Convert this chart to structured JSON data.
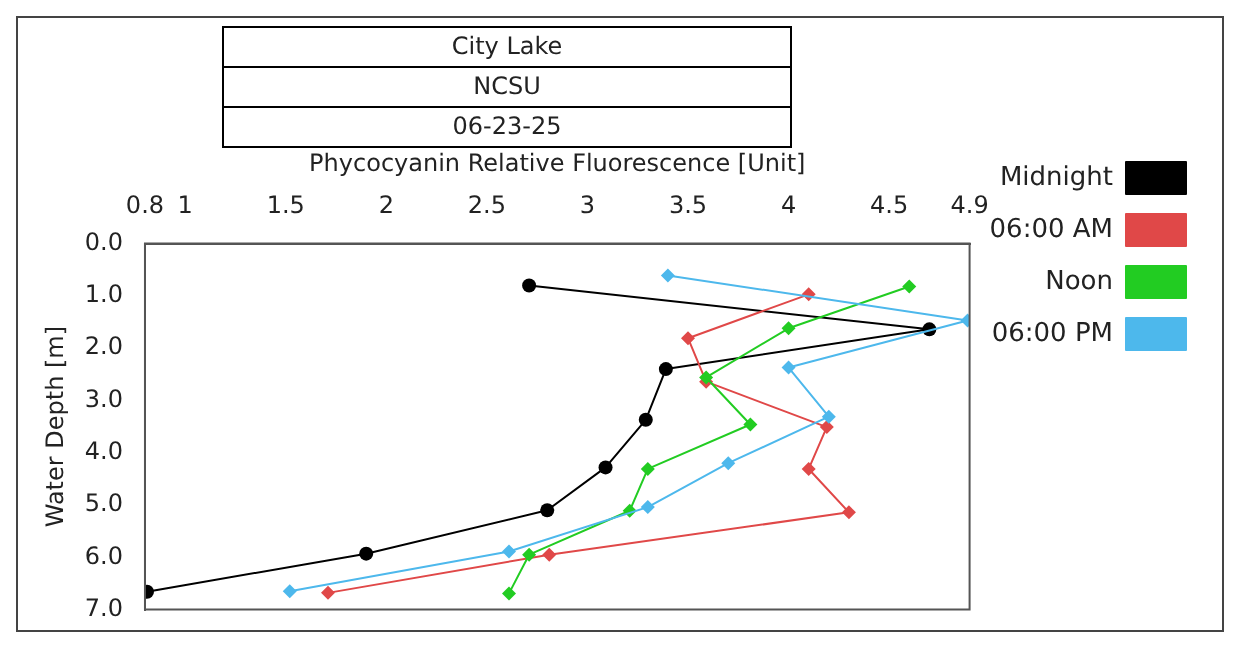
{
  "chart_data": {
    "type": "line",
    "title": "City Lake",
    "subtitle": "NCSU",
    "annotations": [
      "06-23-25"
    ],
    "xlabel": "Phycocyanin Relative Fluorescence [Unit]",
    "ylabel": "Water Depth [m]",
    "xlim": [
      0.8,
      4.9
    ],
    "xticks": [
      0.8,
      1,
      1.5,
      2,
      2.5,
      3,
      3.5,
      4,
      4.5,
      4.9
    ],
    "ylim": [
      7,
      0
    ],
    "yticks": [
      {
        "value": 0,
        "label": "0.0"
      },
      {
        "value": 1,
        "label": "1.0"
      },
      {
        "value": 2,
        "label": "2.0"
      },
      {
        "value": 3,
        "label": "3.0"
      },
      {
        "value": 4,
        "label": "4.0"
      },
      {
        "value": 5,
        "label": "5.0"
      },
      {
        "value": 6,
        "label": "6.0"
      },
      {
        "value": 7,
        "label": "7.0"
      }
    ],
    "grid": false,
    "legend": "top right",
    "line_style": "solid",
    "series": [
      {
        "name": "Midnight",
        "color": "#000000",
        "marker": "circle",
        "x": [
          2.71,
          4.7,
          3.39,
          3.29,
          3.09,
          2.8,
          1.9,
          0.81
        ],
        "values": [
          0.8,
          1.64,
          2.4,
          3.37,
          4.28,
          5.1,
          5.93,
          6.66
        ]
      },
      {
        "name": "06:00 AM",
        "color": "#e04848",
        "marker": "diamond",
        "x": [
          4.1,
          3.5,
          3.59,
          4.19,
          4.1,
          4.3,
          2.81,
          1.71
        ],
        "values": [
          0.97,
          1.81,
          2.64,
          3.51,
          4.31,
          5.14,
          5.95,
          6.68
        ]
      },
      {
        "name": "Noon",
        "color": "#22cc22",
        "marker": "diamond",
        "x": [
          4.6,
          4.0,
          3.59,
          3.81,
          3.3,
          3.21,
          2.71,
          2.61
        ],
        "values": [
          0.82,
          1.62,
          2.56,
          3.46,
          4.31,
          5.11,
          5.95,
          6.69
        ]
      },
      {
        "name": "06:00 PM",
        "color": "#4db8ec",
        "marker": "diamond",
        "x": [
          3.4,
          4.89,
          4.0,
          4.2,
          3.7,
          3.3,
          2.61,
          1.52
        ],
        "values": [
          0.61,
          1.47,
          2.37,
          3.31,
          4.2,
          5.04,
          5.89,
          6.65
        ]
      }
    ]
  }
}
